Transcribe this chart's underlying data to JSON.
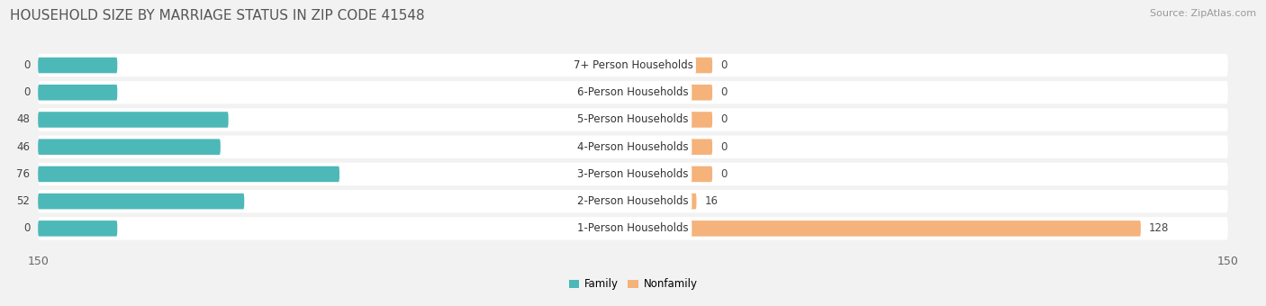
{
  "title": "HOUSEHOLD SIZE BY MARRIAGE STATUS IN ZIP CODE 41548",
  "source": "Source: ZipAtlas.com",
  "categories": [
    "7+ Person Households",
    "6-Person Households",
    "5-Person Households",
    "4-Person Households",
    "3-Person Households",
    "2-Person Households",
    "1-Person Households"
  ],
  "family_values": [
    0,
    0,
    48,
    46,
    76,
    52,
    0
  ],
  "nonfamily_values": [
    0,
    0,
    0,
    0,
    0,
    16,
    128
  ],
  "family_color": "#4db8b8",
  "nonfamily_color": "#f5b27a",
  "xlim": 150,
  "bg_color": "#f2f2f2",
  "title_fontsize": 11,
  "label_fontsize": 8.5,
  "tick_fontsize": 9,
  "source_fontsize": 8,
  "stub_size": 20
}
